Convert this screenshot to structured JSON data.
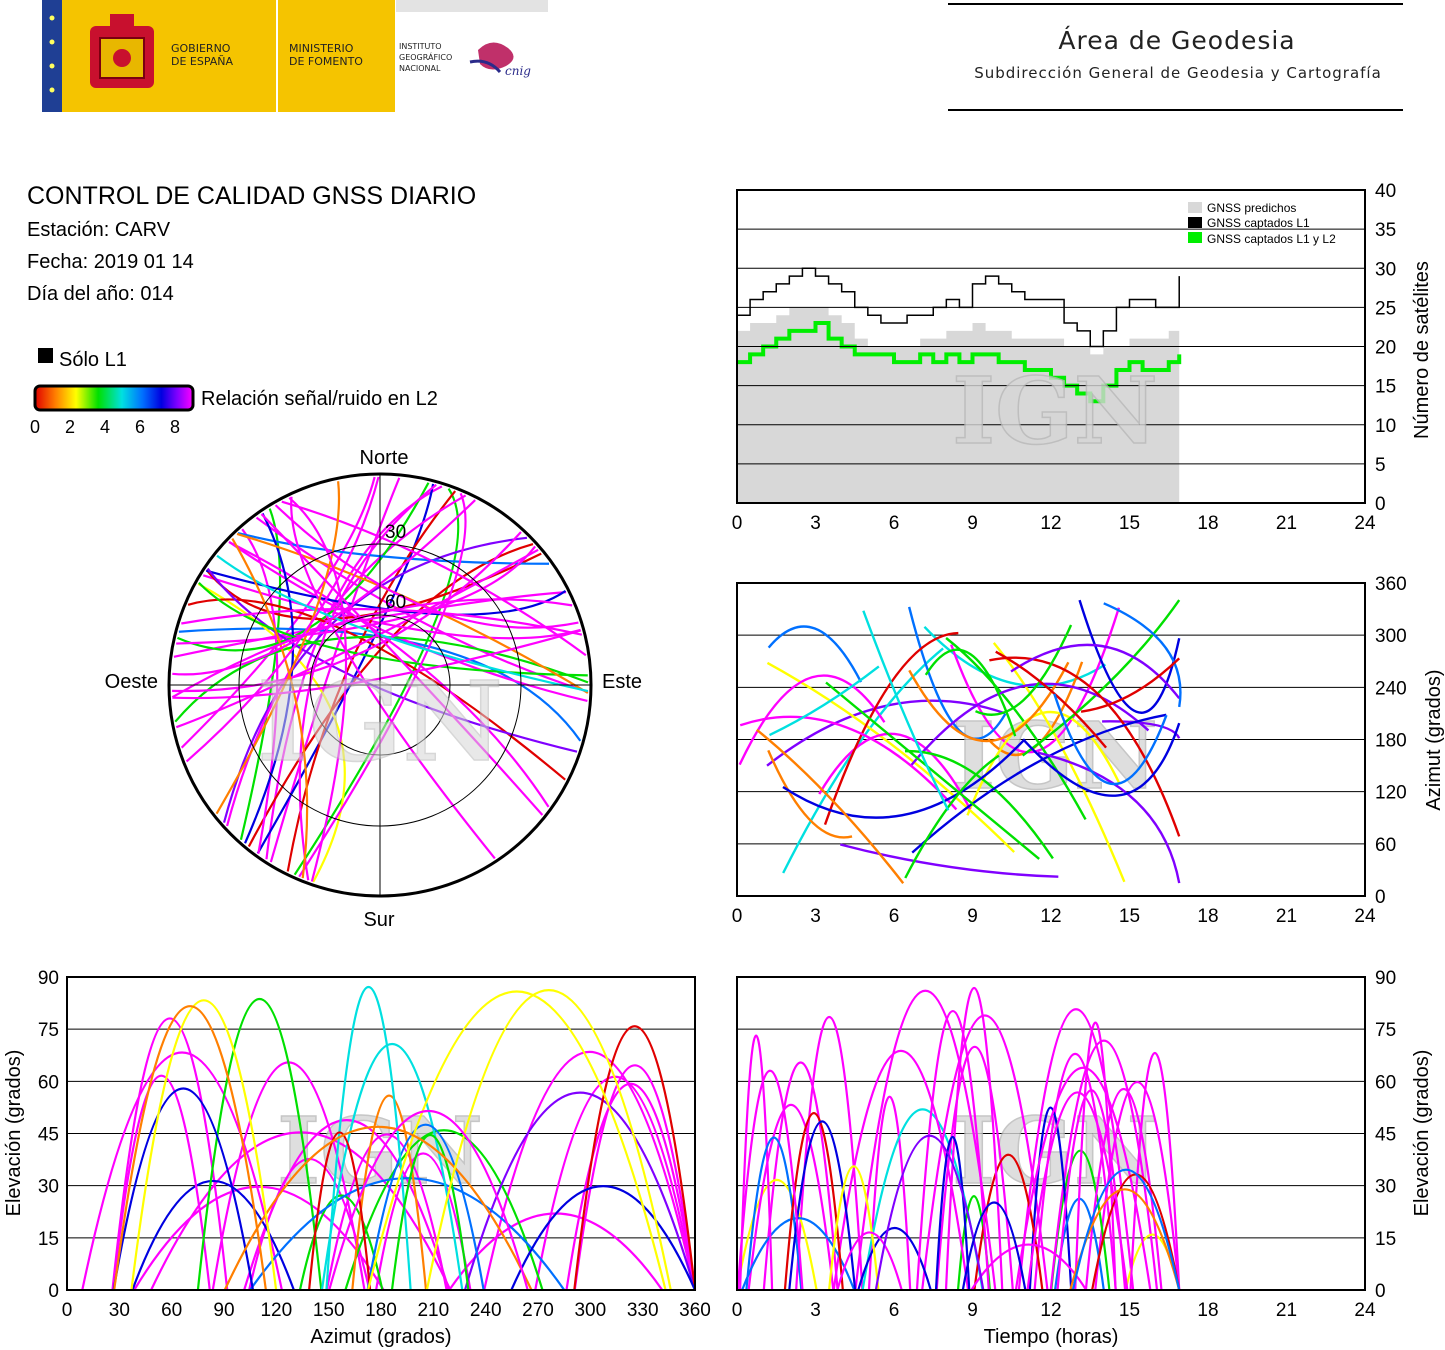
{
  "header": {
    "gov_line1": "GOBIERNO",
    "gov_line2": "DE ESPAÑA",
    "ministry_line1": "MINISTERIO",
    "ministry_line2": "DE FOMENTO",
    "ign_line1": "INSTITUTO",
    "ign_line2": "GEOGRÁFICO",
    "ign_line3": "NACIONAL",
    "cnig_label": "cnig",
    "area_title": "Área de Geodesia",
    "area_subtitle": "Subdirección General de Geodesia y Cartografía"
  },
  "info": {
    "title": "CONTROL DE CALIDAD GNSS DIARIO",
    "station": "Estación: CARV",
    "date": "Fecha: 2019 01 14",
    "doy": "Día del año: 014",
    "only_l1": "Sólo L1",
    "snr_label": "Relación señal/ruido en L2",
    "snr_ticks": [
      "0",
      "2",
      "4",
      "6",
      "8"
    ]
  },
  "watermark": "IGN",
  "colors": {
    "predicted": "#d8d8d8",
    "l1": "#000000",
    "l1l2": "#00ee00",
    "snr_scale": [
      "#e00000",
      "#ff7f00",
      "#ffff00",
      "#00e000",
      "#00e0e0",
      "#0070ff",
      "#0000e0",
      "#8000ff",
      "#ff00ff"
    ]
  },
  "chart_data": [
    {
      "id": "skyplot",
      "type": "scatter",
      "title": "",
      "direction_labels": {
        "north": "Norte",
        "south": "Sur",
        "west": "Oeste",
        "east": "Este"
      },
      "elevation_rings": [
        0,
        30,
        60
      ],
      "ring_labels": [
        "30",
        "60"
      ],
      "grid": true
    },
    {
      "id": "satellite_count",
      "type": "area",
      "xlabel": "",
      "ylabel": "Número de satélites",
      "xlim": [
        0,
        24
      ],
      "ylim": [
        0,
        40
      ],
      "xticks": [
        "0",
        "3",
        "6",
        "9",
        "12",
        "15",
        "18",
        "21",
        "24"
      ],
      "yticks": [
        "0",
        "5",
        "10",
        "15",
        "20",
        "25",
        "30",
        "35",
        "40"
      ],
      "legend": [
        "GNSS predichos",
        "GNSS captados L1",
        "GNSS captados L1 y L2"
      ],
      "legend_placement": "top-right",
      "grid": true,
      "x": [
        0,
        0.5,
        1,
        1.5,
        2,
        2.5,
        3,
        3.5,
        4,
        4.5,
        5,
        5.5,
        6,
        6.5,
        7,
        7.5,
        8,
        8.5,
        9,
        9.5,
        10,
        10.5,
        11,
        11.5,
        12,
        12.5,
        13,
        13.5,
        14,
        14.5,
        15,
        15.5,
        16,
        16.5,
        16.9
      ],
      "series": [
        {
          "name": "GNSS predichos",
          "values": [
            22,
            23,
            23,
            24,
            25,
            25,
            25,
            24,
            23,
            21,
            20,
            20,
            20,
            20,
            21,
            21,
            22,
            22,
            23,
            22,
            22,
            21,
            21,
            21,
            21,
            20,
            20,
            19,
            20,
            20,
            21,
            21,
            21,
            22,
            22
          ]
        },
        {
          "name": "GNSS captados L1",
          "values": [
            24,
            26,
            27,
            28,
            29,
            30,
            29,
            28,
            27,
            25,
            24,
            23,
            23,
            24,
            24,
            25,
            26,
            25,
            28,
            29,
            28,
            27,
            26,
            26,
            26,
            23,
            22,
            20,
            22,
            25,
            26,
            26,
            25,
            25,
            29
          ]
        },
        {
          "name": "GNSS captados L1 y L2",
          "values": [
            18,
            19,
            20,
            21,
            22,
            22,
            23,
            21,
            20,
            19,
            19,
            19,
            18,
            18,
            19,
            18,
            19,
            18,
            19,
            19,
            18,
            18,
            17,
            17,
            16,
            15,
            14,
            13,
            15,
            17,
            18,
            17,
            17,
            18,
            19
          ]
        }
      ]
    },
    {
      "id": "azimuth_time",
      "type": "scatter",
      "xlabel": "",
      "ylabel": "Azimut (grados)",
      "xlim": [
        0,
        24
      ],
      "ylim": [
        0,
        360
      ],
      "xticks": [
        "0",
        "3",
        "6",
        "9",
        "12",
        "15",
        "18",
        "21",
        "24"
      ],
      "yticks": [
        "0",
        "60",
        "120",
        "180",
        "240",
        "300",
        "360"
      ],
      "grid": true
    },
    {
      "id": "elevation_azimuth",
      "type": "scatter",
      "xlabel": "Azimut (grados)",
      "ylabel": "Elevación (grados)",
      "xlim": [
        0,
        360
      ],
      "ylim": [
        0,
        90
      ],
      "xticks": [
        "0",
        "30",
        "60",
        "90",
        "120",
        "150",
        "180",
        "210",
        "240",
        "270",
        "300",
        "330",
        "360"
      ],
      "yticks": [
        "0",
        "15",
        "30",
        "45",
        "60",
        "75",
        "90"
      ],
      "grid": true
    },
    {
      "id": "elevation_time",
      "type": "scatter",
      "xlabel": "Tiempo (horas)",
      "ylabel": "Elevación (grados)",
      "xlim": [
        0,
        24
      ],
      "ylim": [
        0,
        90
      ],
      "xticks": [
        "0",
        "3",
        "6",
        "9",
        "12",
        "15",
        "18",
        "21",
        "24"
      ],
      "yticks": [
        "0",
        "15",
        "30",
        "45",
        "60",
        "75",
        "90"
      ],
      "grid": true
    }
  ]
}
